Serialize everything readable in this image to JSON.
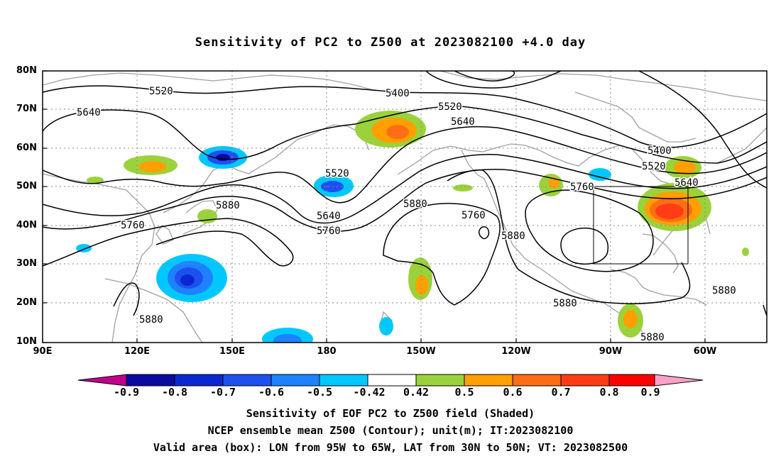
{
  "title": "Sensitivity of PC2 to Z500 at 2023082100 +4.0 day",
  "map": {
    "lat_ticks": [
      "80N",
      "70N",
      "60N",
      "50N",
      "40N",
      "30N",
      "20N",
      "10N"
    ],
    "lon_ticks": [
      "90E",
      "120E",
      "150E",
      "180",
      "150W",
      "120W",
      "90W",
      "60W"
    ],
    "contour_labels": [
      "5520",
      "5640",
      "5400",
      "5520",
      "5640",
      "5520",
      "5400",
      "5520",
      "5640",
      "5760",
      "5880",
      "5760",
      "5640",
      "5760",
      "5880",
      "5760",
      "5880",
      "5880",
      "5880",
      "5880",
      "5880"
    ],
    "valid_box": {
      "lon_range": [
        "95W",
        "65W"
      ],
      "lat_range": [
        "30N",
        "50N"
      ]
    }
  },
  "colorbar": {
    "labels": [
      "-0.9",
      "-0.8",
      "-0.7",
      "-0.6",
      "-0.5",
      "-0.42",
      "0.42",
      "0.5",
      "0.6",
      "0.7",
      "0.8",
      "0.9"
    ],
    "colors": [
      "#c0008c",
      "#0a0aa0",
      "#0a28d2",
      "#1e50f0",
      "#1e82ff",
      "#00c8ff",
      "#ffffff",
      "#9bd23c",
      "#ffa000",
      "#ff6e14",
      "#ff3c14",
      "#ff0000",
      "#ffa0c8"
    ]
  },
  "footer": {
    "line1": "Sensitivity of EOF PC2 to Z500 field (Shaded)",
    "line2": "NCEP ensemble mean Z500 (Contour); unit(m); IT:2023082100",
    "line3": "Valid area (box): LON from 95W to 65W, LAT from 30N to 50N; VT: 2023082500"
  }
}
